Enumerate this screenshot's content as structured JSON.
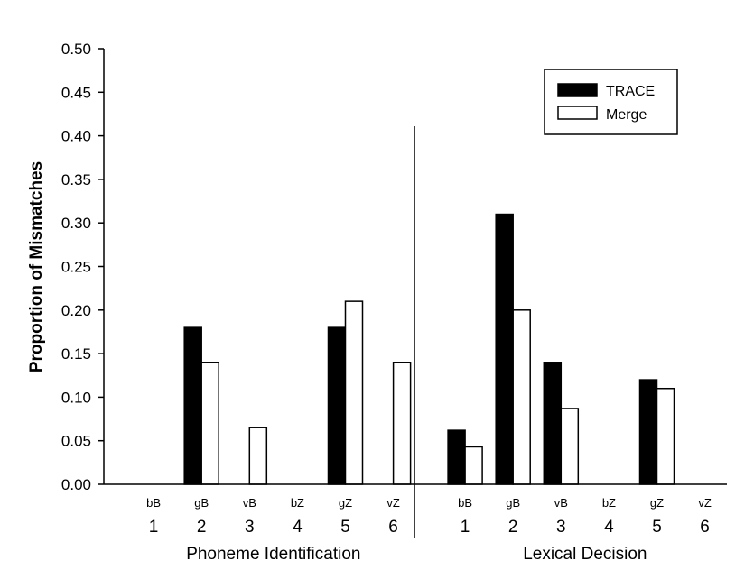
{
  "chart_data": {
    "type": "bar",
    "ylabel": "Proportion of Mismatches",
    "ylim": [
      0,
      0.5
    ],
    "yticks": [
      "0.00",
      "0.05",
      "0.10",
      "0.15",
      "0.20",
      "0.25",
      "0.30",
      "0.35",
      "0.40",
      "0.45",
      "0.50"
    ],
    "legend": {
      "position": "top-right",
      "entries": [
        "TRACE",
        "Merge"
      ]
    },
    "colors": {
      "TRACE": "#000000",
      "Merge": "#ffffff"
    },
    "groups": [
      {
        "label": "Phoneme Identification",
        "categories": [
          {
            "code": "bB",
            "number": "1"
          },
          {
            "code": "gB",
            "number": "2"
          },
          {
            "code": "vB",
            "number": "3"
          },
          {
            "code": "bZ",
            "number": "4"
          },
          {
            "code": "gZ",
            "number": "5"
          },
          {
            "code": "vZ",
            "number": "6"
          }
        ],
        "series": [
          {
            "name": "TRACE",
            "values": [
              0,
              0.18,
              0,
              0,
              0.18,
              0
            ]
          },
          {
            "name": "Merge",
            "values": [
              0,
              0.14,
              0.065,
              0,
              0.21,
              0.14
            ]
          }
        ]
      },
      {
        "label": "Lexical Decision",
        "categories": [
          {
            "code": "bB",
            "number": "1"
          },
          {
            "code": "gB",
            "number": "2"
          },
          {
            "code": "vB",
            "number": "3"
          },
          {
            "code": "bZ",
            "number": "4"
          },
          {
            "code": "gZ",
            "number": "5"
          },
          {
            "code": "vZ",
            "number": "6"
          }
        ],
        "series": [
          {
            "name": "TRACE",
            "values": [
              0.062,
              0.31,
              0.14,
              0,
              0.12,
              0
            ]
          },
          {
            "name": "Merge",
            "values": [
              0.043,
              0.2,
              0.087,
              0,
              0.11,
              0
            ]
          }
        ]
      }
    ]
  }
}
